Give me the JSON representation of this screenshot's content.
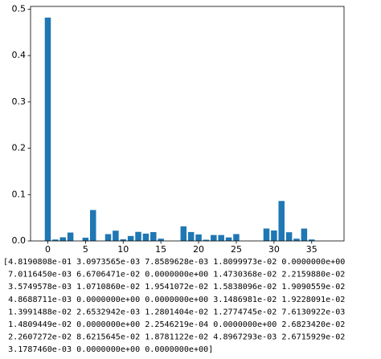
{
  "chart_data": {
    "type": "bar",
    "categories": [
      0,
      1,
      2,
      3,
      4,
      5,
      6,
      7,
      8,
      9,
      10,
      11,
      12,
      13,
      14,
      15,
      16,
      17,
      18,
      19,
      20,
      21,
      22,
      23,
      24,
      25,
      26,
      27,
      28,
      29,
      30,
      31,
      32,
      33,
      34,
      35,
      36,
      37
    ],
    "values": [
      0.48190808,
      0.0030973565,
      0.0078589628,
      0.018099973,
      0.0,
      0.007011645,
      0.066706471,
      0.0,
      0.014730368,
      0.02215988,
      0.0035749578,
      0.01071086,
      0.019541072,
      0.015838096,
      0.019090559,
      0.0048688711,
      0.0,
      0.0,
      0.031486981,
      0.019228091,
      0.013991488,
      0.0026532942,
      0.012801404,
      0.012774745,
      0.0076130922,
      0.014809449,
      0.0,
      0.00022546219,
      0.0,
      0.02682342,
      0.022607272,
      0.086215645,
      0.018781122,
      0.0048967293,
      0.026715929,
      0.003178746,
      0.0,
      0.0
    ],
    "color": "#1f77b4",
    "xlim": [
      -2.29,
      39.29
    ],
    "ylim": [
      0,
      0.506
    ],
    "xticks": [
      0,
      5,
      10,
      15,
      20,
      25,
      30,
      35
    ],
    "yticks": [
      {
        "value": 0,
        "label": "0.0"
      },
      0.1,
      0.2,
      0.3,
      0.4,
      0.5
    ]
  },
  "output_lines": [
    "[4.8190808e-01 3.0973565e-03 7.8589628e-03 1.8099973e-02 0.0000000e+00",
    " 7.0116450e-03 6.6706471e-02 0.0000000e+00 1.4730368e-02 2.2159880e-02",
    " 3.5749578e-03 1.0710860e-02 1.9541072e-02 1.5838096e-02 1.9090559e-02",
    " 4.8688711e-03 0.0000000e+00 0.0000000e+00 3.1486981e-02 1.9228091e-02",
    " 1.3991488e-02 2.6532942e-03 1.2801404e-02 1.2774745e-02 7.6130922e-03",
    " 1.4809449e-02 0.0000000e+00 2.2546219e-04 0.0000000e+00 2.6823420e-02",
    " 2.2607272e-02 8.6215645e-02 1.8781122e-02 4.8967293e-03 2.6715929e-02",
    " 3.1787460e-03 0.0000000e+00 0.0000000e+00]"
  ]
}
